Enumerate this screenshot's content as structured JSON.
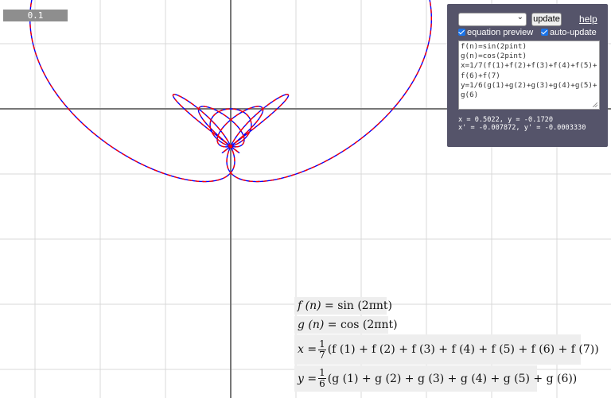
{
  "time_box": "0.1",
  "panel": {
    "dropdown_value": "",
    "update_label": "update",
    "help_label": "help",
    "equation_preview_label": "equation preview",
    "auto_update_label": "auto-update",
    "equation_preview_checked": true,
    "auto_update_checked": true,
    "editor_lines": [
      "f(n)=sin(2pint)",
      "g(n)=cos(2pint)",
      "x=1/7(f(1)+f(2)+f(3)+f(4)+f(5)+f(6)+f(7)",
      "y=1/6(g(1)+g(2)+g(3)+g(4)+g(5)+g(6)"
    ],
    "coords_line1": "x = 0.5022, y = -0.1720",
    "coords_line2": "x' = -0.007872, y' = -0.0003330"
  },
  "equations": {
    "f_lhs": "f (n) = ",
    "f_rhs": "sin (2πnt)",
    "g_lhs": "g (n) = ",
    "g_rhs": "cos (2πnt)",
    "x_lhs": "x = ",
    "x_num": "1",
    "x_den": "7",
    "x_rhs": "(f (1) + f (2) + f (3) + f (4) + f (5) + f (6) + f (7))",
    "y_lhs": "y = ",
    "y_num": "1",
    "y_den": "6",
    "y_rhs": "(g (1) + g (2) + g (3) + g (4) + g (5) + g (6))"
  },
  "plot": {
    "curve_colors": [
      "#0000ff",
      "#ff0000"
    ],
    "grid_color": "#d8d8d8",
    "axis_color": "#777777",
    "t_range": [
      0,
      1
    ]
  }
}
